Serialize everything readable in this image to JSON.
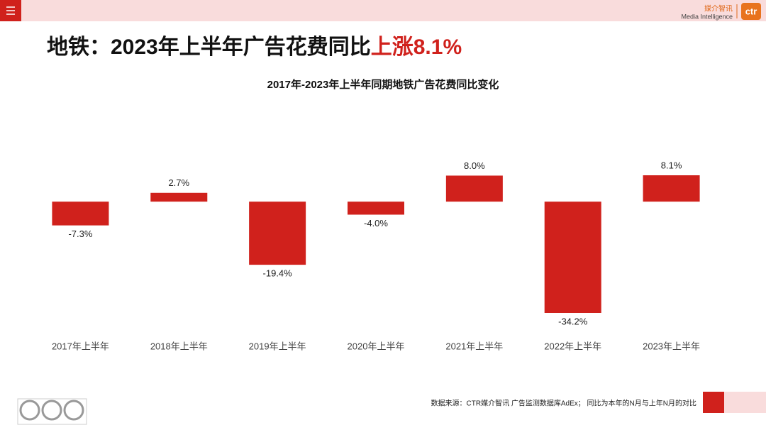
{
  "header": {
    "logo_cn": "媒介智讯",
    "logo_en": "Media Intelligence",
    "logo_mark": "ctr"
  },
  "slide_title": {
    "prefix": "地铁：2023年上半年广告花费同比",
    "highlight": "上涨8.1%"
  },
  "chart_data": {
    "type": "bar",
    "title": "2017年-2023年上半年同期地铁广告花费同比变化",
    "categories": [
      "2017年上半年",
      "2018年上半年",
      "2019年上半年",
      "2020年上半年",
      "2021年上半年",
      "2022年上半年",
      "2023年上半年"
    ],
    "values": [
      -7.3,
      2.7,
      -19.4,
      -4.0,
      8.0,
      -34.2,
      8.1
    ],
    "value_labels": [
      "-7.3%",
      "2.7%",
      "-19.4%",
      "-4.0%",
      "8.0%",
      "-34.2%",
      "8.1%"
    ],
    "color": "#d0211c"
  },
  "footer": {
    "source": "数据来源：CTR媒介智讯 广告监测数据库AdEx；  同比为本年的N月与上年N月的对比"
  }
}
